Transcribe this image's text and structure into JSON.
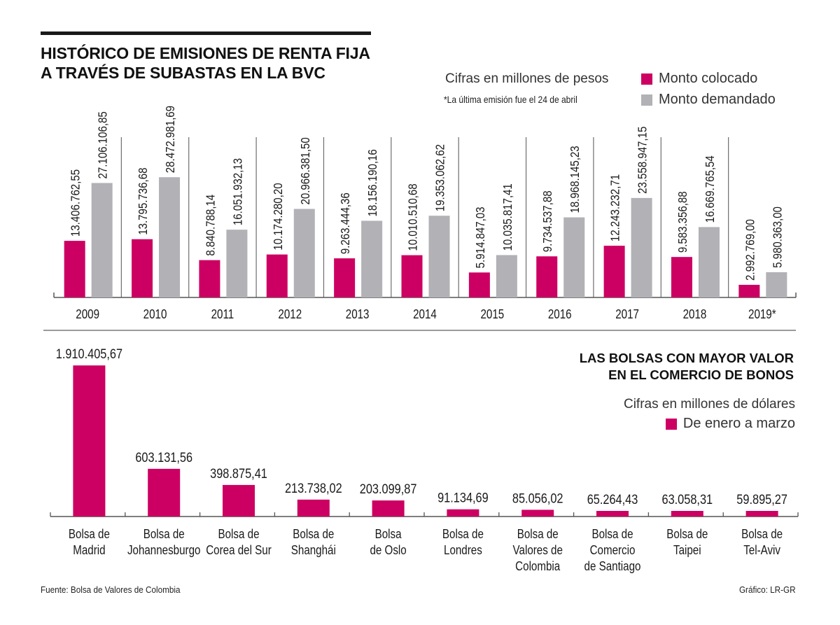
{
  "header": {
    "title_line1": "HISTÓRICO DE EMISIONES DE RENTA FIJA",
    "title_line2": "A TRAVÉS DE SUBASTAS EN LA BVC",
    "units": "Cifras en millones de pesos",
    "footnote": "*La última emisión fue el 24 de abril"
  },
  "section2": {
    "title_line1": "LAS BOLSAS CON MAYOR VALOR",
    "title_line2": "EN EL COMERCIO DE BONOS",
    "units": "Cifras en millones de dólares"
  },
  "footer": {
    "source": "Fuente: Bolsa de Valores de Colombia",
    "credit": "Gráfico: LR-GR"
  },
  "colors": {
    "colocado": "#cc0062",
    "demandado": "#b1b1b6",
    "axis": "#555555",
    "separator": "#6e6e6e"
  },
  "chart_data": [
    {
      "type": "bar",
      "title": "HISTÓRICO DE EMISIONES DE RENTA FIJA A TRAVÉS DE SUBASTAS EN LA BVC",
      "subtitle": "Cifras en millones de pesos",
      "annotation": "*La última emisión fue el 24 de abril",
      "xlabel": "",
      "ylabel": "",
      "legend_position": "top-right",
      "grid": false,
      "ylim": [
        0,
        30000000
      ],
      "categories": [
        "2009",
        "2010",
        "2011",
        "2012",
        "2013",
        "2014",
        "2015",
        "2016",
        "2017",
        "2018",
        "2019*"
      ],
      "series": [
        {
          "name": "Monto colocado",
          "color": "#cc0062",
          "values": [
            13406762.55,
            13795736.68,
            8840788.14,
            10174280.2,
            9263444.36,
            10010510.68,
            5914847.03,
            9734537.88,
            12243232.71,
            9583356.88,
            2992769.0
          ],
          "labels": [
            "13.406.762,55",
            "13.795.736,68",
            "8.840.788,14",
            "10.174.280,20",
            "9.263.444,36",
            "10.010.510,68",
            "5.914.847,03",
            "9.734.537,88",
            "12.243.232,71",
            "9.583.356,88",
            "2.992.769,00"
          ]
        },
        {
          "name": "Monto demandado",
          "color": "#b1b1b6",
          "values": [
            27106106.85,
            28472981.69,
            16051932.13,
            20966381.5,
            18156190.16,
            19353062.62,
            10035817.41,
            18968145.23,
            23558947.15,
            16669765.54,
            5980363.0
          ],
          "labels": [
            "27.106.106,85",
            "28.472.981,69",
            "16.051.932,13",
            "20.966.381,50",
            "18.156.190,16",
            "19.353.062,62",
            "10.035.817,41",
            "18.968.145,23",
            "23.558.947,15",
            "16.669.765,54",
            "5.980.363,00"
          ]
        }
      ]
    },
    {
      "type": "bar",
      "title": "LAS BOLSAS CON MAYOR VALOR EN EL COMERCIO DE BONOS",
      "subtitle": "Cifras en millones de dólares",
      "xlabel": "",
      "ylabel": "",
      "legend_position": "right",
      "grid": false,
      "ylim": [
        0,
        2000000
      ],
      "categories": [
        [
          "Bolsa de",
          "Madrid"
        ],
        [
          "Bolsa de",
          "Johannesburgo"
        ],
        [
          "Bolsa de",
          "Corea del Sur"
        ],
        [
          "Bolsa de",
          "Shanghái"
        ],
        [
          "Bolsa",
          "de Oslo"
        ],
        [
          "Bolsa de",
          "Londres"
        ],
        [
          "Bolsa de",
          "Valores de",
          "Colombia"
        ],
        [
          "Bolsa de",
          "Comercio",
          "de Santiago"
        ],
        [
          "Bolsa de",
          "Taipei"
        ],
        [
          "Bolsa de",
          "Tel-Aviv"
        ]
      ],
      "series": [
        {
          "name": "De enero a marzo",
          "color": "#cc0062",
          "values": [
            1910405.67,
            603131.56,
            398875.41,
            213738.02,
            203099.87,
            91134.69,
            85056.02,
            65264.43,
            63058.31,
            59895.27
          ],
          "labels": [
            "1.910.405,67",
            "603.131,56",
            "398.875,41",
            "213.738,02",
            "203.099,87",
            "91.134,69",
            "85.056,02",
            "65.264,43",
            "63.058,31",
            "59.895,27"
          ]
        }
      ]
    }
  ]
}
